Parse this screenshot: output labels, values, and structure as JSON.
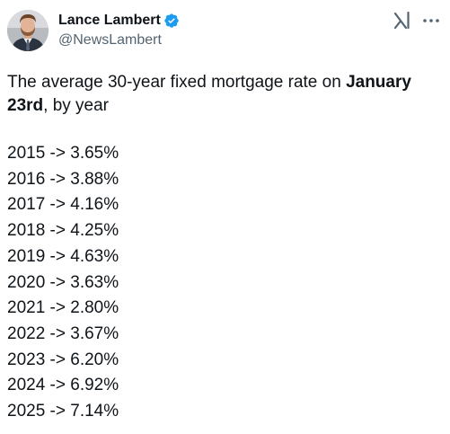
{
  "author": {
    "display_name": "Lance Lambert",
    "handle": "@NewsLambert",
    "verified": true,
    "avatar_icon": "profile-photo"
  },
  "actions": {
    "grok_icon": "grok-icon",
    "more_icon": "more-options-icon"
  },
  "tweet": {
    "intro_part1": "The average 30-year fixed mortgage rate on ",
    "intro_bold": "January 23rd",
    "intro_part2": ", by year",
    "rates": [
      "2015 -> 3.65%",
      "2016 -> 3.88%",
      "2017 -> 4.16%",
      "2018 -> 4.25%",
      "2019 -> 4.63%",
      "2020 -> 3.63%",
      "2021 -> 2.80%",
      "2022 -> 3.67%",
      "2023 -> 6.20%",
      "2024 -> 6.92%",
      "2025 -> 7.14%"
    ]
  },
  "colors": {
    "text": "#0f1419",
    "secondary_text": "#536471",
    "verified_blue": "#1d9bf0"
  }
}
